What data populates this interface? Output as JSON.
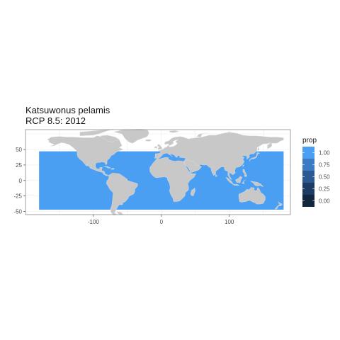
{
  "title": "Katsuwonus pelamis",
  "subtitle": "RCP 8.5: 2012",
  "colors": {
    "ocean": "#4a9ff3",
    "land": "#c8c8c8",
    "border": "#e6e6e6",
    "grid": "#ebebeb",
    "panel_border": "#8a8a8a"
  },
  "chart_data": {
    "type": "heatmap",
    "x_ticks": [
      -100,
      0,
      100
    ],
    "y_ticks": [
      50,
      25,
      0,
      -25,
      -50
    ],
    "xlim": [
      -200,
      190
    ],
    "ylim": [
      -55,
      82
    ],
    "legend": {
      "title": "prop",
      "position": "right",
      "breaks": [
        "1.00",
        "0.75",
        "0.50",
        "0.25",
        "0.00"
      ],
      "colors": [
        "#4a9ff3",
        "#3a7bc4",
        "#2b5a92",
        "#1d3c63",
        "#12263d"
      ]
    },
    "fill_value": 1.0,
    "data_extent": {
      "lon": [
        -180,
        180
      ],
      "lat": [
        -47,
        47
      ]
    }
  }
}
